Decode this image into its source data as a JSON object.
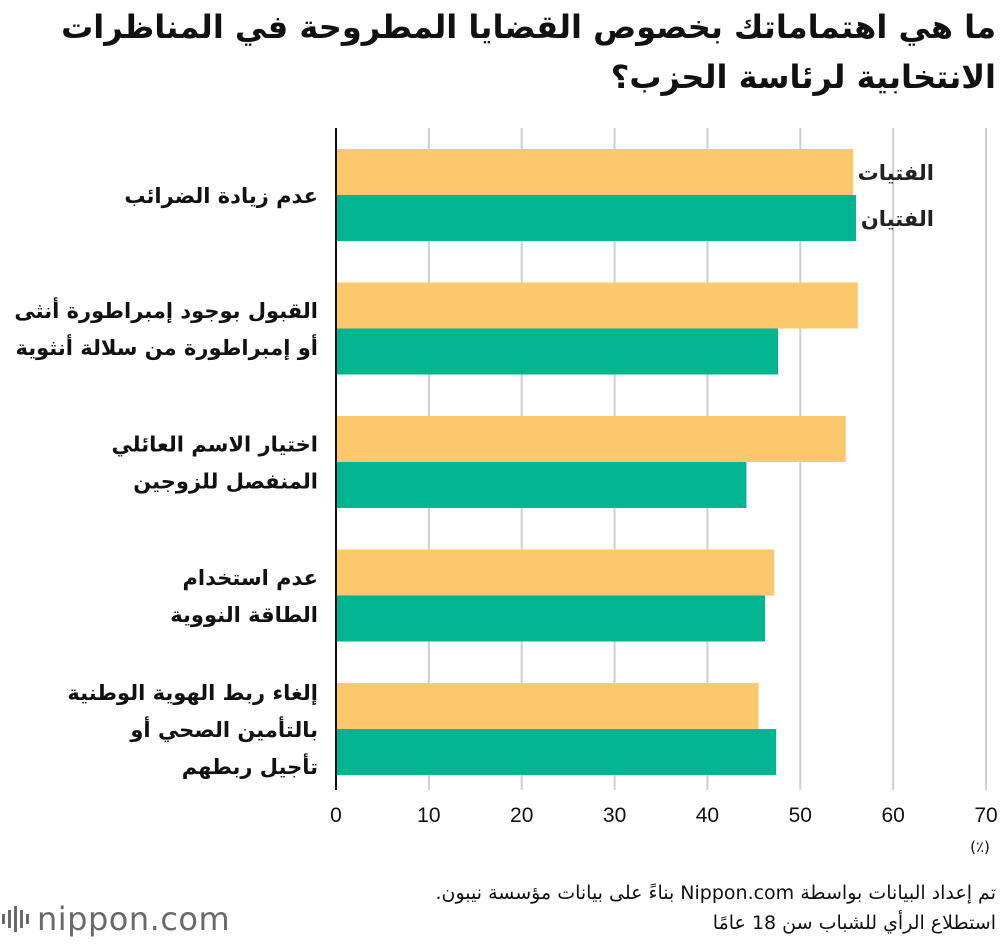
{
  "title": "ما هي اهتماماتك بخصوص القضايا المطروحة في المناظرات الانتخابية لرئاسة الحزب؟",
  "chart_data": {
    "type": "bar",
    "orientation": "horizontal",
    "categories": [
      [
        "عدم زيادة الضرائب"
      ],
      [
        "القبول بوجود إمبراطورة أنثى",
        "أو إمبراطورة من سلالة أنثوية"
      ],
      [
        "اختيار الاسم العائلي",
        "المنفصل للزوجين"
      ],
      [
        "عدم استخدام",
        "الطاقة النووية"
      ],
      [
        "إلغاء ربط الهوية الوطنية",
        "بالتأمين الصحي أو",
        "تأجيل ربطهم"
      ]
    ],
    "series": [
      {
        "name": "الفتيات",
        "color": "#fbc96b",
        "values": [
          55.7,
          56.2,
          54.9,
          47.2,
          45.5
        ]
      },
      {
        "name": "الفتيان",
        "color": "#00b58f",
        "values": [
          56.0,
          47.6,
          44.2,
          46.2,
          47.4
        ]
      }
    ],
    "xlim": [
      0,
      70
    ],
    "xticks": [
      0,
      10,
      20,
      30,
      40,
      50,
      60,
      70
    ],
    "unit": "(٪)",
    "grid": true,
    "legend": "inline, at end of first category bars"
  },
  "footer": {
    "source": "تم إعداد البيانات بواسطة Nippon.com بناءً على بيانات مؤسسة نيبون.",
    "note": "استطلاع الرأي للشباب سن 18 عامًا"
  },
  "logo": {
    "text": "nippon.com"
  }
}
